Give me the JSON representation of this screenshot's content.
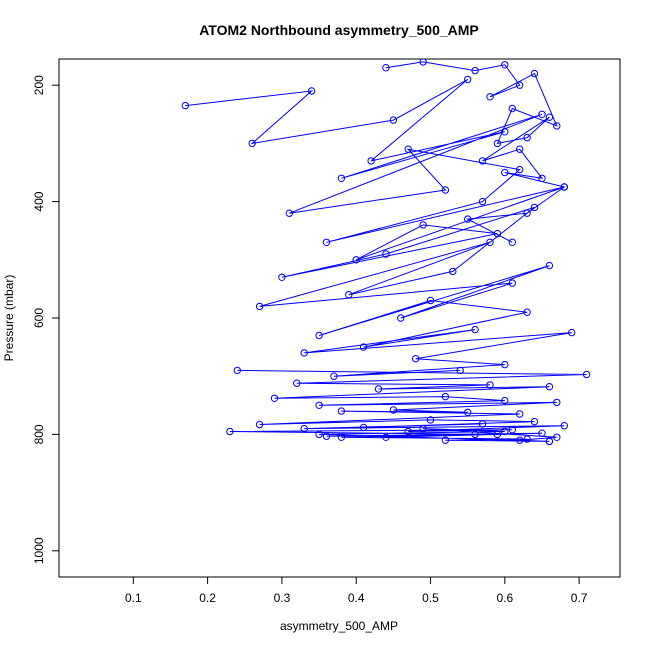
{
  "chart_data": {
    "type": "scatter",
    "title": "ATOM2 Northbound asymmetry_500_AMP",
    "xlabel": "asymmetry_500_AMP",
    "ylabel": "Pressure (mbar)",
    "xlim": [
      0.0,
      0.755
    ],
    "ylim": [
      1045,
      155
    ],
    "y_reversed": true,
    "x_ticks": [
      0.1,
      0.2,
      0.3,
      0.4,
      0.5,
      0.6,
      0.7
    ],
    "x_tick_labels": [
      "0.1",
      "0.2",
      "0.3",
      "0.4",
      "0.5",
      "0.6",
      "0.7"
    ],
    "y_ticks": [
      200,
      400,
      600,
      800,
      1000
    ],
    "y_tick_labels": [
      "200",
      "400",
      "600",
      "800",
      "1000"
    ],
    "grid": false,
    "legend": "none",
    "marker": "open-circle",
    "connect_points": true,
    "series_color": "#0000ff",
    "series": [
      {
        "x": [
          0.17,
          0.34,
          0.26,
          0.45,
          0.55,
          0.42,
          0.6,
          0.38,
          0.65,
          0.31,
          0.52,
          0.47,
          0.62,
          0.57,
          0.36,
          0.68,
          0.4,
          0.49,
          0.59,
          0.3,
          0.44,
          0.64,
          0.53,
          0.39,
          0.58,
          0.27,
          0.61,
          0.46,
          0.66,
          0.35,
          0.5,
          0.63,
          0.41,
          0.56,
          0.33,
          0.69,
          0.48,
          0.6,
          0.37,
          0.54
        ],
        "y": [
          235,
          210,
          300,
          260,
          190,
          330,
          280,
          360,
          250,
          420,
          380,
          310,
          345,
          400,
          470,
          375,
          500,
          440,
          455,
          530,
          490,
          410,
          520,
          560,
          470,
          580,
          540,
          600,
          510,
          630,
          570,
          590,
          650,
          620,
          660,
          625,
          670,
          680,
          700,
          690
        ]
      },
      {
        "x": [
          0.24,
          0.71,
          0.32,
          0.58,
          0.43,
          0.66,
          0.29,
          0.52,
          0.6,
          0.35,
          0.67,
          0.45,
          0.55,
          0.38,
          0.62,
          0.27,
          0.5,
          0.64,
          0.41,
          0.57,
          0.33,
          0.68,
          0.47,
          0.61,
          0.23,
          0.56,
          0.36,
          0.65,
          0.44,
          0.59,
          0.38,
          0.63,
          0.52,
          0.66,
          0.35,
          0.6,
          0.49,
          0.67,
          0.62,
          0.66
        ],
        "y": [
          690,
          697,
          712,
          715,
          722,
          718,
          738,
          735,
          742,
          750,
          745,
          758,
          762,
          760,
          765,
          783,
          775,
          778,
          788,
          782,
          790,
          785,
          795,
          792,
          795,
          800,
          803,
          798,
          805,
          800,
          805,
          808,
          810,
          812,
          800,
          795,
          790,
          805,
          810,
          812
        ]
      },
      {
        "x": [
          0.44,
          0.49,
          0.56,
          0.6,
          0.62,
          0.58,
          0.64,
          0.67,
          0.61,
          0.59,
          0.63,
          0.66,
          0.57,
          0.62,
          0.65,
          0.6,
          0.68,
          0.63,
          0.55,
          0.61
        ],
        "y": [
          170,
          160,
          175,
          165,
          200,
          220,
          180,
          270,
          240,
          300,
          290,
          255,
          330,
          310,
          360,
          350,
          375,
          420,
          430,
          470
        ]
      }
    ]
  }
}
